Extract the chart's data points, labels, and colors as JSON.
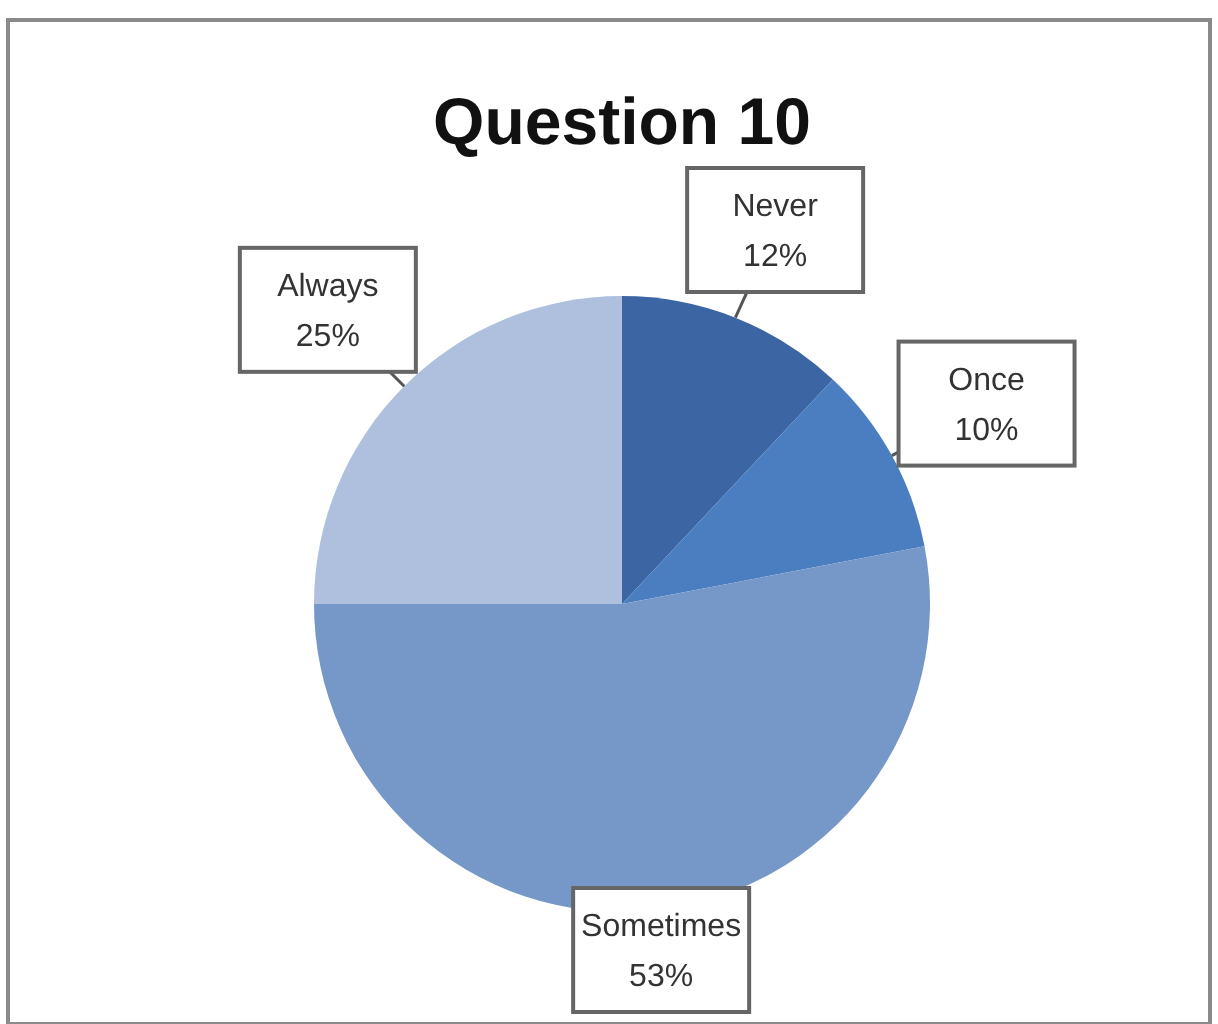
{
  "chart_data": {
    "type": "pie",
    "title": "Question 10",
    "categories": [
      "Never",
      "Once",
      "Sometimes",
      "Always"
    ],
    "values": [
      12,
      10,
      53,
      25
    ],
    "colors": [
      "#3b66a3",
      "#4a7ec0",
      "#7698c9",
      "#afc0de"
    ],
    "value_labels": [
      "12%",
      "10%",
      "53%",
      "25%"
    ]
  }
}
